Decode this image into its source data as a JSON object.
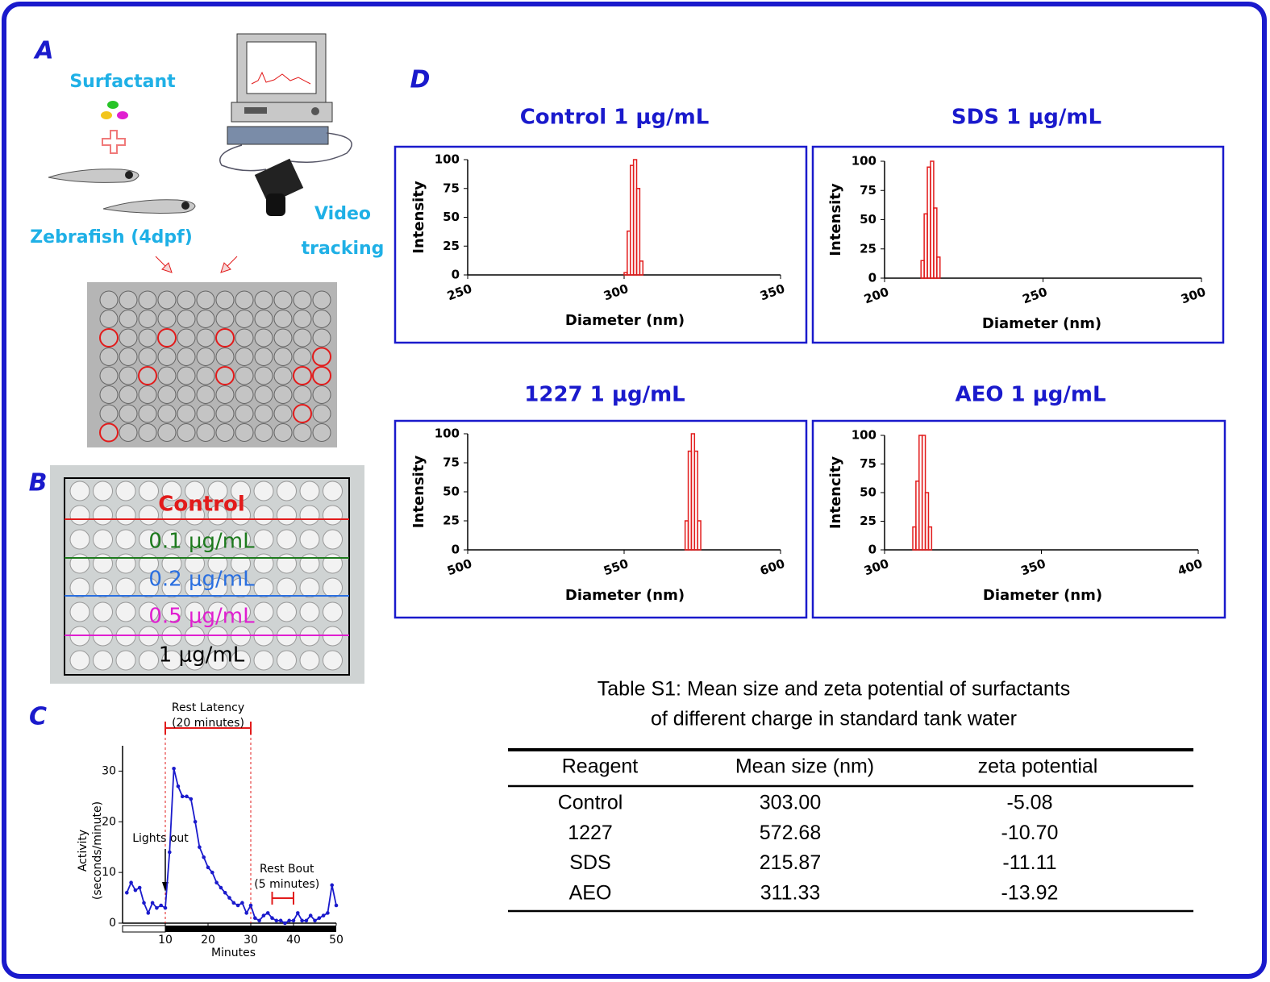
{
  "panel_labels": [
    "A",
    "B",
    "C",
    "D"
  ],
  "panel_a": {
    "surfactant": "Surfactant",
    "zebrafish": "Zebrafish (4dpf)",
    "video_tracking": [
      "Video",
      "tracking"
    ]
  },
  "panel_b": {
    "rows": [
      {
        "label": "Control",
        "color": "#e21b1b"
      },
      {
        "label": "0.1 μg/mL",
        "color": "#1d7a1d"
      },
      {
        "label": "0.2 μg/mL",
        "color": "#2a6fe0"
      },
      {
        "label": "0.5 μg/mL",
        "color": "#e01fd0"
      },
      {
        "label": "1 μg/mL",
        "color": "#000000"
      }
    ]
  },
  "chart_data": [
    {
      "type": "line",
      "y_label": [
        "Activity",
        "(seconds/minute)"
      ],
      "x_label": "Minutes",
      "x": [
        1,
        2,
        3,
        4,
        5,
        6,
        7,
        8,
        9,
        10,
        11,
        12,
        13,
        14,
        15,
        16,
        17,
        18,
        19,
        20,
        21,
        22,
        23,
        24,
        25,
        26,
        27,
        28,
        29,
        30,
        31,
        32,
        33,
        34,
        35,
        36,
        37,
        38,
        39,
        40,
        41,
        42,
        43,
        44,
        45,
        46,
        47,
        48,
        49,
        50
      ],
      "series": [
        {
          "color": "#1a1acc",
          "values": [
            6,
            8,
            6.5,
            7,
            4,
            2,
            4,
            3,
            3.5,
            3,
            14,
            30.5,
            27,
            25,
            25,
            24.5,
            20,
            15,
            13,
            11,
            10,
            8,
            7,
            6,
            5,
            4,
            3.5,
            4,
            2,
            3.5,
            1,
            0.5,
            1.5,
            2,
            1,
            0.5,
            0.5,
            0,
            0.5,
            0.5,
            2,
            0.5,
            0.5,
            1.5,
            0.5,
            1,
            1.5,
            2,
            7.5,
            3.5
          ]
        }
      ],
      "xlim": [
        0,
        50
      ],
      "ylim": [
        0,
        35
      ],
      "xticks": [
        10,
        20,
        30,
        40,
        50
      ],
      "yticks": [
        0,
        10,
        20,
        30
      ],
      "annotations": [
        {
          "text": [
            "Rest Latency",
            "(20 minutes)"
          ],
          "from": 10,
          "to": 30,
          "color": "#e21b1b"
        },
        {
          "text": [
            "Lights out"
          ],
          "at": 10
        },
        {
          "text": [
            "Rest Bout",
            "(5 minutes)"
          ],
          "from": 35,
          "to": 40,
          "color": "#e21b1b"
        }
      ]
    },
    {
      "type": "histogram",
      "title": "Control 1 μg/mL",
      "x_label": "Diameter (nm)",
      "y_label": "Intensity",
      "color": "#e21b1b",
      "bins": [
        300,
        301,
        302,
        303,
        304,
        305,
        306
      ],
      "values": [
        2,
        38,
        95,
        100,
        75,
        12
      ],
      "xlim": [
        250,
        350
      ],
      "ylim": [
        0,
        100
      ],
      "xticks": [
        250,
        300,
        350
      ],
      "yticks": [
        0,
        25,
        50,
        75,
        100
      ]
    },
    {
      "type": "histogram",
      "title": "SDS 1 μg/mL",
      "x_label": "Diameter (nm)",
      "y_label": "Intensity",
      "color": "#e21b1b",
      "bins": [
        211.5,
        212.5,
        213.5,
        214.5,
        215.5,
        216.5,
        217.5
      ],
      "values": [
        15,
        55,
        95,
        100,
        60,
        18
      ],
      "xlim": [
        200,
        300
      ],
      "ylim": [
        0,
        100
      ],
      "xticks": [
        200,
        250,
        300
      ],
      "yticks": [
        0,
        25,
        50,
        75,
        100
      ]
    },
    {
      "type": "histogram",
      "title": "1227 1 μg/mL",
      "x_label": "Diameter (nm)",
      "y_label": "Intensity",
      "color": "#e21b1b",
      "bins": [
        569.5,
        570.5,
        571.5,
        572.5,
        573.5,
        574.5
      ],
      "values": [
        25,
        85,
        100,
        85,
        25
      ],
      "xlim": [
        500,
        600
      ],
      "ylim": [
        0,
        100
      ],
      "xticks": [
        500,
        550,
        600
      ],
      "yticks": [
        0,
        25,
        50,
        75,
        100
      ]
    },
    {
      "type": "histogram",
      "title": "AEO 1 μg/mL",
      "x_label": "Diameter (nm)",
      "y_label": "Intencity",
      "color": "#e21b1b",
      "bins": [
        309,
        310,
        311,
        312,
        313,
        314,
        315
      ],
      "values": [
        20,
        60,
        100,
        100,
        50,
        20
      ],
      "xlim": [
        300,
        400
      ],
      "ylim": [
        0,
        100
      ],
      "xticks": [
        300,
        350,
        400
      ],
      "yticks": [
        0,
        25,
        50,
        75,
        100
      ]
    }
  ],
  "table": {
    "title": [
      "Table S1: Mean size and zeta potential of surfactants",
      "of different charge in standard tank water"
    ],
    "header": [
      "Reagent",
      "Mean size (nm)",
      "zeta potential"
    ],
    "rows": [
      [
        "Control",
        "303.00",
        "-5.08"
      ],
      [
        "1227",
        "572.68",
        "-10.70"
      ],
      [
        "SDS",
        "215.87",
        "-11.11"
      ],
      [
        "AEO",
        "311.33",
        "-13.92"
      ]
    ]
  }
}
